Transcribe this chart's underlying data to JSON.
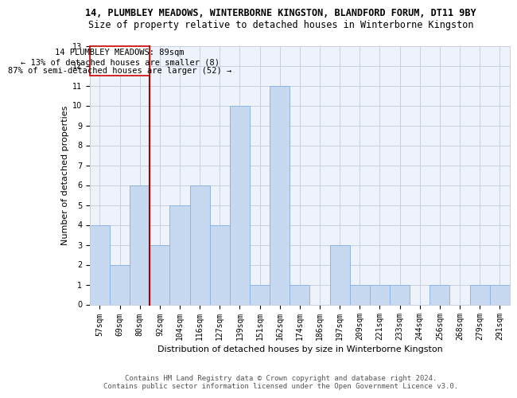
{
  "title_line1": "14, PLUMBLEY MEADOWS, WINTERBORNE KINGSTON, BLANDFORD FORUM, DT11 9BY",
  "title_line2": "Size of property relative to detached houses in Winterborne Kingston",
  "xlabel": "Distribution of detached houses by size in Winterborne Kingston",
  "ylabel": "Number of detached properties",
  "categories": [
    "57sqm",
    "69sqm",
    "80sqm",
    "92sqm",
    "104sqm",
    "116sqm",
    "127sqm",
    "139sqm",
    "151sqm",
    "162sqm",
    "174sqm",
    "186sqm",
    "197sqm",
    "209sqm",
    "221sqm",
    "233sqm",
    "244sqm",
    "256sqm",
    "268sqm",
    "279sqm",
    "291sqm"
  ],
  "values": [
    4,
    2,
    6,
    3,
    5,
    6,
    4,
    10,
    1,
    11,
    1,
    0,
    3,
    1,
    1,
    1,
    0,
    1,
    0,
    1,
    1
  ],
  "bar_color": "#c6d9f0",
  "bar_edge_color": "#8db4e2",
  "subject_label": "14 PLUMBLEY MEADOWS: 89sqm",
  "pct_smaller": "13% of detached houses are smaller (8)",
  "arrow_smaller": "←",
  "pct_larger": "87% of semi-detached houses are larger (52)",
  "arrow_larger": "→",
  "ylim": [
    0,
    13
  ],
  "yticks": [
    0,
    1,
    2,
    3,
    4,
    5,
    6,
    7,
    8,
    9,
    10,
    11,
    12,
    13
  ],
  "footer_line1": "Contains HM Land Registry data © Crown copyright and database right 2024.",
  "footer_line2": "Contains public sector information licensed under the Open Government Licence v3.0.",
  "bg_color": "#eef2fa",
  "grid_color": "#c8d0df",
  "subject_line_color": "#aa0000",
  "annotation_box_color": "#ffffff",
  "annotation_box_edge_color": "#cc0000",
  "title_fontsize": 8.5,
  "subtitle_fontsize": 8.5,
  "tick_fontsize": 7,
  "ylabel_fontsize": 8,
  "xlabel_fontsize": 8,
  "footer_fontsize": 6.5,
  "annotation_fontsize": 7.5
}
